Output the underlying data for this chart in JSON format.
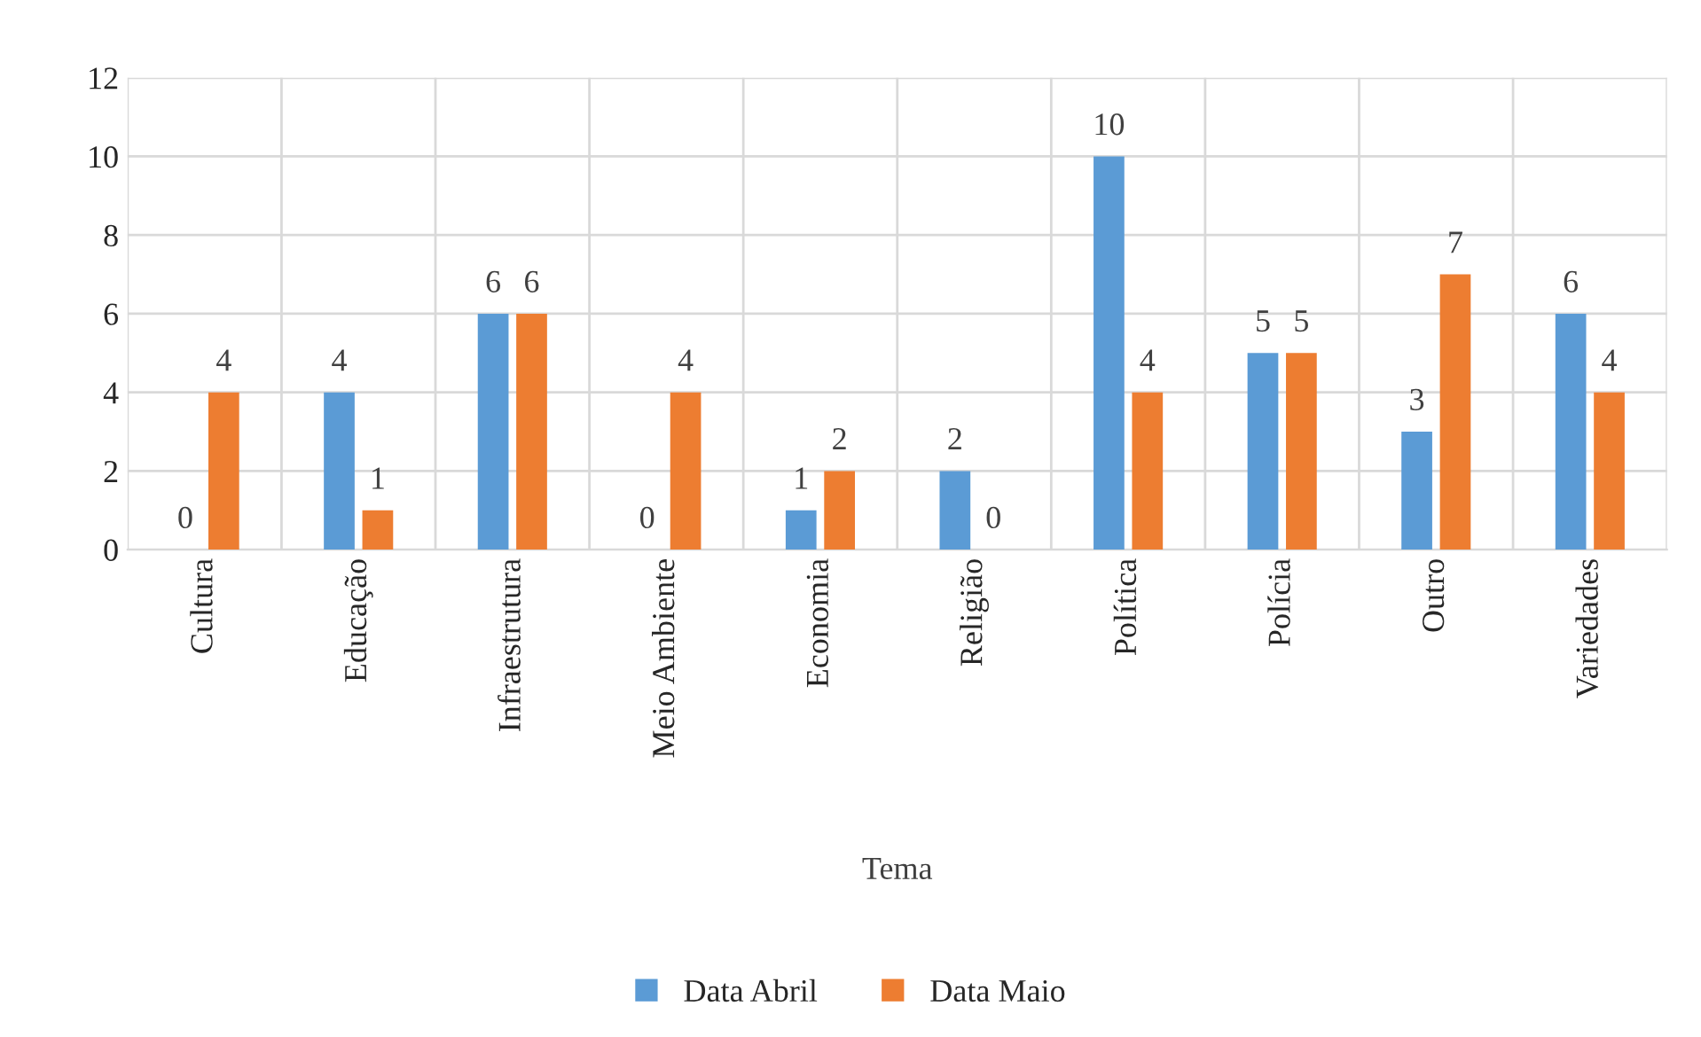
{
  "chart_data": {
    "type": "bar",
    "xlabel": "Tema",
    "categories": [
      "Cultura",
      "Educação",
      "Infraestrutura",
      "Meio Ambiente",
      "Economia",
      "Religião",
      "Política",
      "Polícia",
      "Outro",
      "Variedades"
    ],
    "series": [
      {
        "name": "Data Abril",
        "color": "#5b9bd5",
        "values": [
          0,
          4,
          6,
          0,
          1,
          2,
          10,
          5,
          3,
          6
        ]
      },
      {
        "name": "Data Maio",
        "color": "#ed7d31",
        "values": [
          4,
          1,
          6,
          4,
          2,
          0,
          4,
          5,
          7,
          4
        ]
      }
    ],
    "ylim": [
      0,
      12
    ],
    "yticks": [
      0,
      2,
      4,
      6,
      8,
      10,
      12
    ],
    "grid": true,
    "legend": "bottom",
    "data_labels": true
  }
}
